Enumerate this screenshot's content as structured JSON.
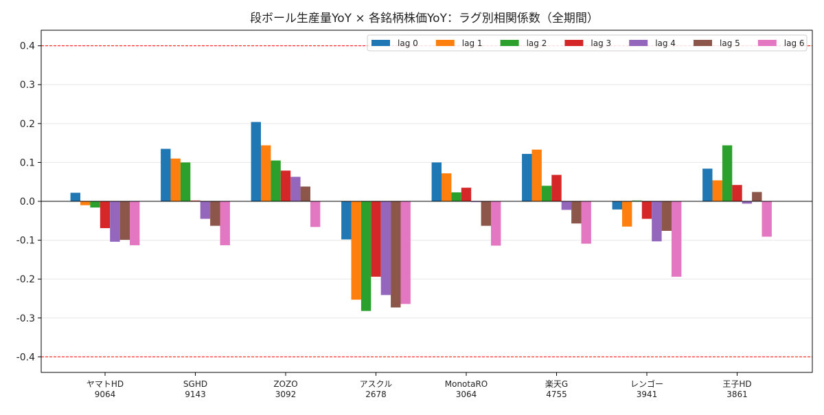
{
  "chart_data": {
    "type": "bar",
    "title": "段ボール生産量YoY × 各銘柄株価YoY：ラグ別相関係数（全期間）",
    "xlabel": "",
    "ylabel": "",
    "categories": [
      {
        "name": "ヤマトHD",
        "code": "9064"
      },
      {
        "name": "SGHD",
        "code": "9143"
      },
      {
        "name": "ZOZO",
        "code": "3092"
      },
      {
        "name": "アスクル",
        "code": "2678"
      },
      {
        "name": "MonotaRO",
        "code": "3064"
      },
      {
        "name": "楽天G",
        "code": "4755"
      },
      {
        "name": "レンゴー",
        "code": "3941"
      },
      {
        "name": "王子HD",
        "code": "3861"
      }
    ],
    "series": [
      {
        "name": "lag 0",
        "color": "#1f77b4",
        "values": [
          0.022,
          0.135,
          0.204,
          -0.098,
          0.1,
          0.122,
          -0.021,
          0.084
        ]
      },
      {
        "name": "lag 1",
        "color": "#ff7f0e",
        "values": [
          -0.01,
          0.11,
          0.144,
          -0.253,
          0.072,
          0.133,
          -0.065,
          0.054
        ]
      },
      {
        "name": "lag 2",
        "color": "#2ca02c",
        "values": [
          -0.016,
          0.1,
          0.105,
          -0.282,
          0.023,
          0.04,
          0.002,
          0.144
        ]
      },
      {
        "name": "lag 3",
        "color": "#d62728",
        "values": [
          -0.069,
          0.002,
          0.079,
          -0.194,
          0.035,
          0.068,
          -0.045,
          0.042
        ]
      },
      {
        "name": "lag 4",
        "color": "#9467bd",
        "values": [
          -0.104,
          -0.045,
          0.063,
          -0.241,
          -0.002,
          -0.022,
          -0.103,
          -0.006
        ]
      },
      {
        "name": "lag 5",
        "color": "#8c564b",
        "values": [
          -0.099,
          -0.063,
          0.038,
          -0.273,
          -0.063,
          -0.057,
          -0.076,
          0.024
        ]
      },
      {
        "name": "lag 6",
        "color": "#e377c2",
        "values": [
          -0.113,
          -0.113,
          -0.066,
          -0.264,
          -0.114,
          -0.109,
          -0.194,
          -0.091
        ]
      }
    ],
    "ylim": [
      -0.44,
      0.44
    ],
    "yticks": [
      "-0.4",
      "-0.3",
      "-0.2",
      "-0.1",
      "0.0",
      "0.1",
      "0.2",
      "0.3",
      "0.4"
    ],
    "reference_lines": [
      0.4,
      -0.4
    ],
    "reference_line_color": "#ff0000",
    "grid": "horizontal",
    "legend_position": "top-right"
  }
}
